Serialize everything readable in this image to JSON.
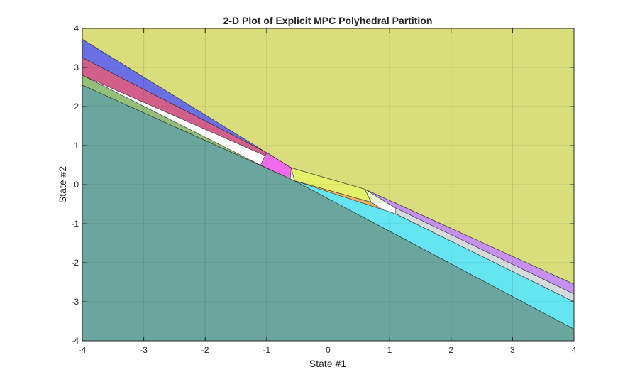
{
  "chart_data": {
    "type": "area",
    "title": "2-D Plot of Explicit MPC Polyhedral Partition",
    "xlabel": "State #1",
    "ylabel": "State #2",
    "xlim": [
      -4,
      4
    ],
    "ylim": [
      -4,
      4
    ],
    "xticks": [
      "-4",
      "-3",
      "-2",
      "-1",
      "0",
      "1",
      "2",
      "3",
      "4"
    ],
    "yticks": [
      "4",
      "3",
      "2",
      "1",
      "0",
      "-1",
      "-2",
      "-3",
      "-4"
    ],
    "grid": true,
    "regions": [
      {
        "color": "#d9dd7b",
        "points": [
          [
            -4,
            4
          ],
          [
            4,
            4
          ],
          [
            4,
            -2.55
          ],
          [
            0.6,
            -0.12
          ],
          [
            -0.6,
            0.43
          ],
          [
            -4,
            3.72
          ]
        ]
      },
      {
        "color": "#6b6fe6",
        "points": [
          [
            -4,
            3.72
          ],
          [
            -0.6,
            0.43
          ],
          [
            -1.0,
            0.82
          ],
          [
            -4,
            3.25
          ]
        ]
      },
      {
        "color": "#d25f8a",
        "points": [
          [
            -4,
            3.25
          ],
          [
            -1.0,
            0.82
          ],
          [
            -0.65,
            0.48
          ],
          [
            -4,
            2.8
          ]
        ]
      },
      {
        "color": "#f26bef",
        "points": [
          [
            -1.0,
            0.82
          ],
          [
            -0.6,
            0.43
          ],
          [
            -0.62,
            0.1
          ],
          [
            -1.1,
            0.5
          ]
        ]
      },
      {
        "color": "#f3a9d8",
        "points": [
          [
            -1.0,
            0.82
          ],
          [
            -0.6,
            0.43
          ],
          [
            -0.65,
            0.48
          ]
        ]
      },
      {
        "color": "#93bf78",
        "points": [
          [
            -4,
            2.8
          ],
          [
            -1.1,
            0.5
          ],
          [
            -0.55,
            0.1
          ],
          [
            -4,
            2.55
          ]
        ]
      },
      {
        "color": "#e2f06a",
        "points": [
          [
            -0.6,
            0.43
          ],
          [
            0.6,
            -0.12
          ],
          [
            0.7,
            -0.45
          ],
          [
            -0.55,
            0.1
          ]
        ]
      },
      {
        "color": "#eeb060",
        "points": [
          [
            -0.55,
            0.1
          ],
          [
            0.7,
            -0.45
          ],
          [
            1.0,
            -0.75
          ]
        ]
      },
      {
        "color": "#e6f8cf",
        "points": [
          [
            0.6,
            -0.12
          ],
          [
            1.1,
            -0.6
          ],
          [
            1.1,
            -0.45
          ],
          [
            0.7,
            -0.45
          ]
        ]
      },
      {
        "color": "#c591f0",
        "points": [
          [
            0.6,
            -0.12
          ],
          [
            4,
            -2.55
          ],
          [
            4,
            -2.8
          ],
          [
            1.1,
            -0.6
          ]
        ]
      },
      {
        "color": "#d7dadb",
        "points": [
          [
            1.1,
            -0.6
          ],
          [
            4,
            -2.8
          ],
          [
            4,
            -3.0
          ],
          [
            1.1,
            -0.75
          ]
        ]
      },
      {
        "color": "#63e5f2",
        "points": [
          [
            -0.55,
            0.1
          ],
          [
            1.1,
            -0.75
          ],
          [
            4,
            -3.0
          ],
          [
            4,
            -3.7
          ]
        ]
      },
      {
        "color": "#6aa69d",
        "points": [
          [
            -4,
            2.55
          ],
          [
            -0.55,
            0.1
          ],
          [
            4,
            -3.7
          ],
          [
            4,
            -4
          ],
          [
            -4,
            -4
          ]
        ]
      }
    ]
  }
}
